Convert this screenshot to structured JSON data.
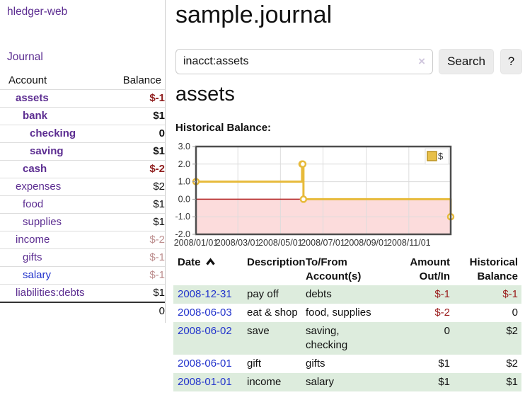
{
  "app": {
    "brand": "hledger-web"
  },
  "header": {
    "title": "sample.journal"
  },
  "search": {
    "query": "inacct:assets",
    "clear_label": "×",
    "button_label": "Search",
    "help_label": "?"
  },
  "sidebar": {
    "nav": {
      "journal_label": "Journal"
    },
    "table": {
      "account_header": "Account",
      "balance_header": "Balance"
    },
    "accounts": [
      {
        "name": "assets",
        "indent": 1,
        "bold": true,
        "balance": "$-1",
        "neg": "dark"
      },
      {
        "name": "bank",
        "indent": 2,
        "bold": true,
        "balance": "$1"
      },
      {
        "name": "checking",
        "indent": 3,
        "bold": true,
        "balance": "0"
      },
      {
        "name": "saving",
        "indent": 3,
        "bold": true,
        "balance": "$1"
      },
      {
        "name": "cash",
        "indent": 2,
        "bold": true,
        "balance": "$-2",
        "neg": "dark"
      },
      {
        "name": "expenses",
        "indent": 1,
        "balance": "$2"
      },
      {
        "name": "food",
        "indent": 2,
        "balance": "$1"
      },
      {
        "name": "supplies",
        "indent": 2,
        "balance": "$1"
      },
      {
        "name": "income",
        "indent": 1,
        "balance": "$-2",
        "neg": "light"
      },
      {
        "name": "gifts",
        "indent": 2,
        "balance": "$-1",
        "neg": "light"
      },
      {
        "name": "salary",
        "indent": 2,
        "balance": "$-1",
        "neg": "light",
        "link_color": "blue"
      },
      {
        "name": "liabilities:debts",
        "indent": 1,
        "balance": "$1"
      }
    ],
    "total": "0"
  },
  "main": {
    "account_title": "assets",
    "chart_label": "Historical Balance:"
  },
  "chart_data": {
    "type": "line",
    "title": "Historical Balance",
    "legend": {
      "label": "$",
      "position": "top-right"
    },
    "series": [
      {
        "name": "$",
        "color": "#e7ba3a",
        "step": true,
        "points": [
          [
            "2008-01-01",
            1
          ],
          [
            "2008-06-01",
            2
          ],
          [
            "2008-06-02",
            2
          ],
          [
            "2008-06-03",
            0
          ],
          [
            "2008-12-31",
            -1
          ]
        ]
      }
    ],
    "xlim": [
      "2008-01-01",
      "2008-12-31"
    ],
    "ylim": [
      -2,
      3
    ],
    "x_ticks": [
      "2008/01/01",
      "2008/03/01",
      "2008/05/01",
      "2008/07/01",
      "2008/09/01",
      "2008/11/01"
    ],
    "y_ticks": [
      3.0,
      2.0,
      1.0,
      0.0,
      -1.0,
      -2.0
    ],
    "grid": true,
    "negative_region_fill": "#fcdcdc",
    "zero_line_color": "#b22222"
  },
  "register": {
    "columns": [
      "Date",
      "Description",
      "To/From\nAccount(s)",
      "Amount\nOut/In",
      "Historical\nBalance"
    ],
    "rows": [
      {
        "date": "2008-12-31",
        "description": "pay off",
        "accounts": "debts",
        "amount": "$-1",
        "amount_neg": true,
        "balance": "$-1",
        "balance_neg": true
      },
      {
        "date": "2008-06-03",
        "description": "eat & shop",
        "accounts": "food, supplies",
        "amount": "$-2",
        "amount_neg": true,
        "balance": "0"
      },
      {
        "date": "2008-06-02",
        "description": "save",
        "accounts": "saving,\nchecking",
        "amount": "0",
        "balance": "$2"
      },
      {
        "date": "2008-06-01",
        "description": "gift",
        "accounts": "gifts",
        "amount": "$1",
        "balance": "$2"
      },
      {
        "date": "2008-01-01",
        "description": "income",
        "accounts": "salary",
        "amount": "$1",
        "balance": "$1"
      }
    ]
  },
  "colors": {
    "accent_purple": "#5c2d91",
    "link_blue": "#2233cc",
    "negative_dark": "#8f1d1d",
    "negative_muted": "#bd8f8f",
    "table_negative": "#9a1b1b",
    "row_highlight_green": "#ddecdd",
    "chart_line_gold": "#e7ba3a",
    "chart_negative_fill": "#fcdcdc",
    "chart_zero_line": "#b22222",
    "button_gray": "#ececec"
  }
}
